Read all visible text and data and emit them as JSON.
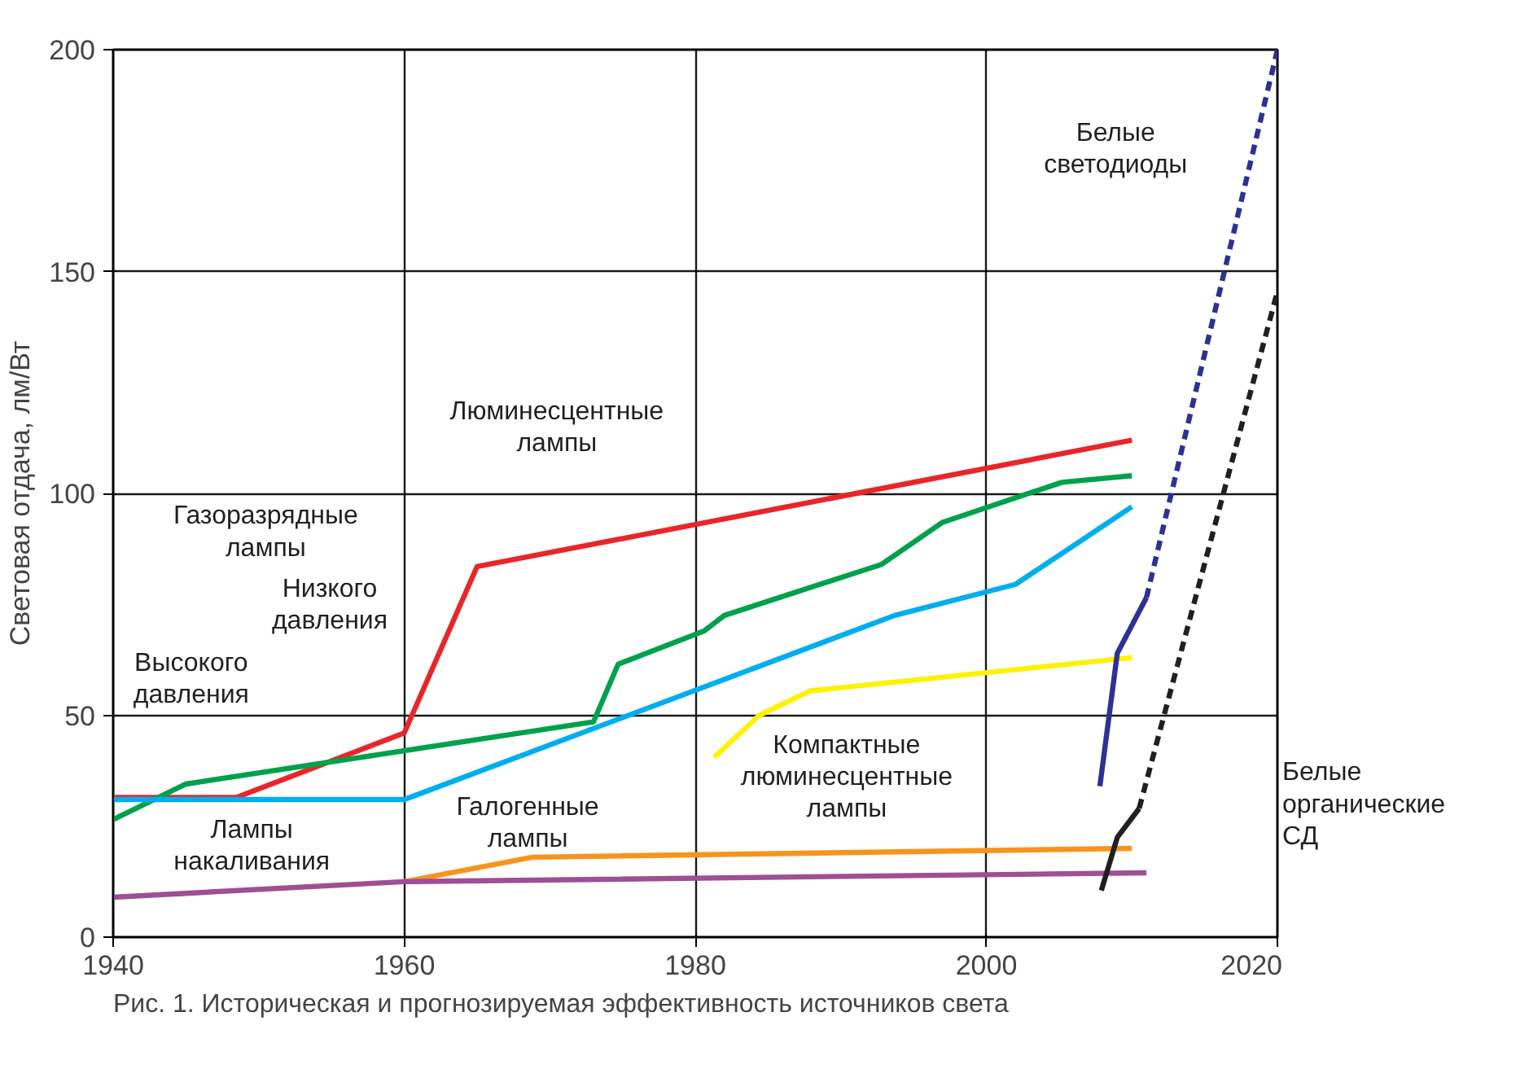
{
  "chart_data": {
    "type": "line",
    "ylabel": "Световая отдача, лм/Вт",
    "xlim": [
      1940,
      2020
    ],
    "ylim": [
      0,
      200
    ],
    "xticks": [
      1940,
      1960,
      1980,
      2000,
      2020
    ],
    "yticks": [
      0,
      50,
      100,
      150,
      200
    ],
    "grid": true,
    "marker": "none",
    "series": [
      {
        "color": "#e8262a",
        "x": [
          1940,
          1948.5,
          1960,
          1965,
          2010
        ],
        "values": [
          31.5,
          31.5,
          46,
          83.5,
          112
        ]
      },
      {
        "color": "#00a14b",
        "x": [
          1940,
          1945,
          1973,
          1974.7,
          1980.6,
          1982,
          1992.8,
          1997,
          2005.2,
          2010
        ],
        "values": [
          26.5,
          34.5,
          48.5,
          61.5,
          69,
          72.5,
          84,
          93.5,
          102.5,
          104
        ]
      },
      {
        "color": "#00aeef",
        "x": [
          1940,
          1960,
          1993.7,
          2002,
          2010
        ],
        "values": [
          31,
          31,
          72.5,
          79.5,
          97
        ]
      },
      {
        "color": "#fff200",
        "x": [
          1981.3,
          1984.4,
          1987.9,
          2010
        ],
        "values": [
          40.5,
          50,
          55.5,
          63
        ]
      },
      {
        "color": "#f7941d",
        "x": [
          1960,
          1968.8,
          2010
        ],
        "values": [
          12.5,
          18,
          20
        ]
      },
      {
        "color": "#9e4f96",
        "x": [
          1940,
          1960,
          2011
        ],
        "values": [
          9,
          12.5,
          14.5
        ]
      },
      {
        "color": "#2e3192",
        "x": [
          2007.8,
          2009,
          2011
        ],
        "values": [
          34,
          64,
          76.5
        ]
      },
      {
        "color": "#2e3192",
        "line_style": "dashed",
        "x": [
          2011,
          2020
        ],
        "values": [
          76.5,
          200
        ]
      },
      {
        "color": "#231f20",
        "x": [
          2007.9,
          2009,
          2010.5
        ],
        "values": [
          10.5,
          22.5,
          29
        ]
      },
      {
        "color": "#231f20",
        "line_style": "dashed",
        "x": [
          2010.5,
          2020
        ],
        "values": [
          29,
          145.5
        ]
      }
    ],
    "annotations": [
      "Газоразрядные\nлампы",
      "Низкого\nдавления",
      "Высокого\nдавления",
      "Люминесцентные\nлампы",
      "Лампы\nнакаливания",
      "Галогенные\nлампы",
      "Компактные\nлюминесцентные\nлампы",
      "Белые\nсветодиоды",
      "Белые\nорганические\nСД",
      "Рис. 1. Историческая и прогнозируемая эффективность источников света"
    ]
  }
}
